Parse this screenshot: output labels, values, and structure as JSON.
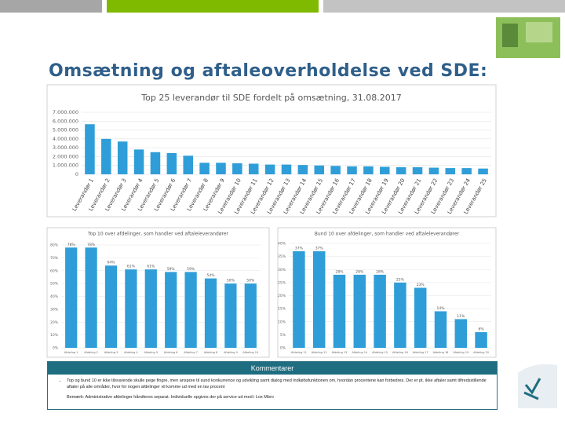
{
  "slide": {
    "title": "Omsætning og aftaleoverholdelse ved SDE:",
    "comments": {
      "header": "Kommentarer",
      "items": [
        "Top og bund 10 er ikke tilsvarende skulle pege fingre, men anspore til sund konkurrence og udvikling samt dialog med indkøbsfunktionen om, hvordan procentene kan forbedres. Der er pt. ikke aftaler samt tilfredsstillende aftaler på alle områder, hvor for nogen afdelinger vil komme ud med en lav procent",
        "Bemærk: Administrative afdelinger håndteres separat. Individuelle opgives der på service ud med i Lox Mbro"
      ]
    }
  },
  "chart_data": [
    {
      "type": "bar",
      "title": "Top 25 leverandør til SDE fordelt på omsætning, 31.08.2017",
      "categories": [
        "Leverandør 1",
        "Leverandør 2",
        "Leverandør 3",
        "Leverandør 4",
        "Leverandør 5",
        "Leverandør 6",
        "Leverandør 7",
        "Leverandør 8",
        "Leverandør 9",
        "Leverandør 10",
        "Leverandør 11",
        "Leverandør 12",
        "Leverandør 13",
        "Leverandør 14",
        "Leverandør 15",
        "Leverandør 16",
        "Leverandør 17",
        "Leverandør 18",
        "Leverandør 19",
        "Leverandør 20",
        "Leverandør 21",
        "Leverandør 22",
        "Leverandør 23",
        "Leverandør 24",
        "Leverandør 25"
      ],
      "values": [
        5650000,
        4000000,
        3700000,
        2800000,
        2500000,
        2400000,
        2100000,
        1300000,
        1300000,
        1250000,
        1200000,
        1100000,
        1100000,
        1050000,
        1000000,
        950000,
        900000,
        900000,
        850000,
        800000,
        800000,
        750000,
        700000,
        700000,
        650000
      ],
      "color": "#2f9ed8",
      "ylim": [
        0,
        7000000
      ],
      "yticks": [
        0,
        {
          "value": 1000000,
          "label": "1.000.000"
        },
        {
          "value": 2000000,
          "label": "2.000.000"
        },
        {
          "value": 3000000,
          "label": "3.000.000"
        },
        {
          "value": 4000000,
          "label": "4.000.000"
        },
        {
          "value": 5000000,
          "label": "5.000.000"
        },
        {
          "value": 6000000,
          "label": "6.000.000"
        },
        {
          "value": 7000000,
          "label": "7.000.000"
        }
      ],
      "grid": true
    },
    {
      "type": "bar",
      "title": "Top 10 over afdelinger, som handler ved aftaleleverandører",
      "categories": [
        "Afdeling 1",
        "Afdeling 2",
        "Afdeling 3",
        "Afdeling 4",
        "Afdeling 5",
        "Afdeling 6",
        "Afdeling 7",
        "Afdeling 8",
        "Afdeling 9",
        "Afdeling 10"
      ],
      "values": [
        78,
        78,
        64,
        61,
        61,
        59,
        59,
        54,
        50,
        50
      ],
      "value_labels": [
        "78%",
        "78%",
        "64%",
        "61%",
        "61%",
        "59%",
        "59%",
        "54%",
        "50%",
        "50%"
      ],
      "color": "#2f9ed8",
      "ylim": [
        0,
        80
      ],
      "yticks": [
        {
          "value": 0,
          "label": "0%"
        },
        {
          "value": 10,
          "label": "10%"
        },
        {
          "value": 20,
          "label": "20%"
        },
        {
          "value": 30,
          "label": "30%"
        },
        {
          "value": 40,
          "label": "40%"
        },
        {
          "value": 50,
          "label": "50%"
        },
        {
          "value": 60,
          "label": "60%"
        },
        {
          "value": 70,
          "label": "70%"
        },
        {
          "value": 80,
          "label": "80%"
        }
      ],
      "grid": true
    },
    {
      "type": "bar",
      "title": "Bund 10 over afdelinger, som handler ved aftaleleverandører",
      "categories": [
        "Afdeling 11",
        "Afdeling 12",
        "Afdeling 13",
        "Afdeling 14",
        "Afdeling 15",
        "Afdeling 16",
        "Afdeling 17",
        "Afdeling 18",
        "Afdeling 19",
        "Afdeling 20"
      ],
      "values": [
        37,
        37,
        28,
        28,
        28,
        25,
        23,
        14,
        11,
        6
      ],
      "value_labels": [
        "37%",
        "37%",
        "28%",
        "28%",
        "28%",
        "25%",
        "23%",
        "14%",
        "11%",
        "6%"
      ],
      "color": "#2f9ed8",
      "ylim": [
        0,
        40
      ],
      "yticks": [
        {
          "value": 0,
          "label": "0%"
        },
        {
          "value": 5,
          "label": "5%"
        },
        {
          "value": 10,
          "label": "10%"
        },
        {
          "value": 15,
          "label": "15%"
        },
        {
          "value": 20,
          "label": "20%"
        },
        {
          "value": 25,
          "label": "25%"
        },
        {
          "value": 30,
          "label": "30%"
        },
        {
          "value": 35,
          "label": "35%"
        },
        {
          "value": 40,
          "label": "40%"
        }
      ],
      "grid": true
    }
  ]
}
